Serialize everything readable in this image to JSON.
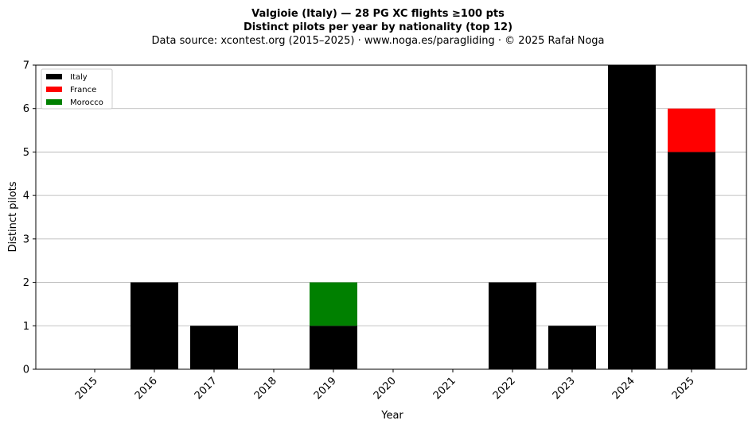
{
  "chart_data": {
    "type": "bar",
    "stacked": true,
    "title": "Valgioie (Italy)  —  28 PG XC flights ≥100 pts",
    "subtitle": "Distinct pilots per year by nationality (top 12)",
    "source": "Data source: xcontest.org (2015–2025)  ·  www.noga.es/paragliding  ·  © 2025 Rafał Noga",
    "xlabel": "Year",
    "ylabel": "Distinct pilots",
    "ylim": [
      0,
      7
    ],
    "yticks": [
      0,
      1,
      2,
      3,
      4,
      5,
      6,
      7
    ],
    "grid": "y",
    "legend_position": "top-left",
    "categories": [
      "2015",
      "2016",
      "2017",
      "2018",
      "2019",
      "2020",
      "2021",
      "2022",
      "2023",
      "2024",
      "2025"
    ],
    "series": [
      {
        "name": "Italy",
        "color": "#000000",
        "values": [
          0,
          2,
          1,
          0,
          1,
          0,
          0,
          2,
          1,
          7,
          5
        ]
      },
      {
        "name": "France",
        "color": "#ff0000",
        "values": [
          0,
          0,
          0,
          0,
          0,
          0,
          0,
          0,
          0,
          0,
          1
        ]
      },
      {
        "name": "Morocco",
        "color": "#008000",
        "values": [
          0,
          0,
          0,
          0,
          1,
          0,
          0,
          0,
          0,
          0,
          0
        ]
      }
    ]
  }
}
